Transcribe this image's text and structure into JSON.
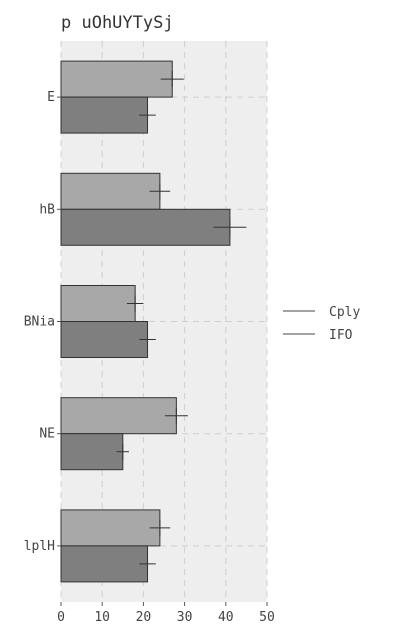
{
  "chart_data": {
    "type": "bar",
    "orientation": "horizontal",
    "title": "p uOhUYTySj",
    "xlabel": "",
    "ylabel": "",
    "xlim": [
      0,
      50
    ],
    "x_ticks": [
      0,
      10,
      20,
      30,
      40,
      50
    ],
    "categories": [
      "E",
      "hB",
      "BNia",
      "NE",
      "lplH"
    ],
    "series": [
      {
        "name": "Cply",
        "color": "#a8a8a8",
        "values": [
          27,
          24,
          18,
          28,
          24
        ],
        "errors": [
          2.8,
          2.5,
          2,
          2.8,
          2.5
        ]
      },
      {
        "name": "IFO",
        "color": "#7f7f7f",
        "values": [
          21,
          41,
          21,
          15,
          21
        ],
        "errors": [
          2,
          4,
          2,
          1.5,
          2
        ]
      }
    ],
    "error_bars": true,
    "grid": true,
    "legend_position": "right"
  }
}
